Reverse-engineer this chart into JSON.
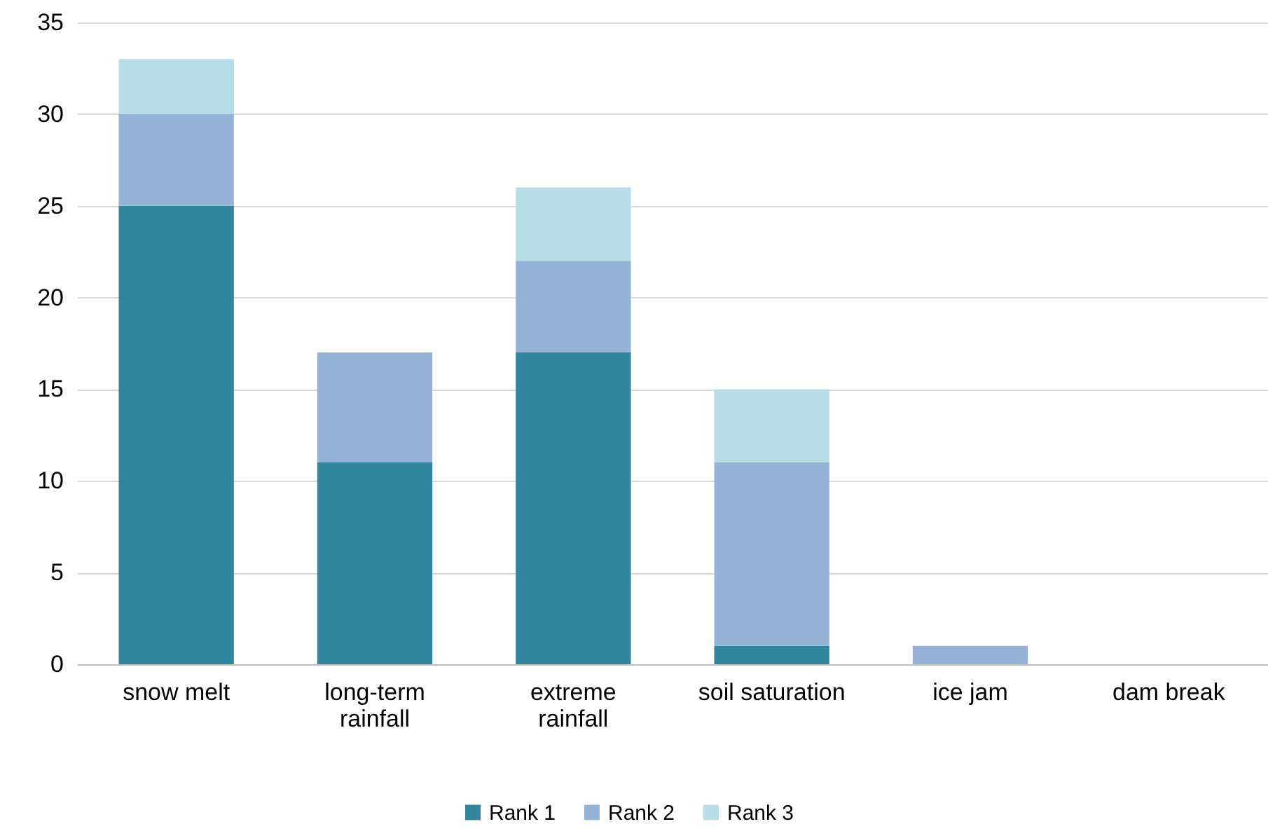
{
  "chart_data": {
    "type": "bar",
    "stacked": true,
    "categories": [
      "snow melt",
      "long-term\nrainfall",
      "extreme\nrainfall",
      "soil saturation",
      "ice jam",
      "dam break"
    ],
    "series": [
      {
        "name": "Rank 1",
        "color": "#31859c",
        "values": [
          25,
          11,
          17,
          1,
          0,
          0
        ]
      },
      {
        "name": "Rank 2",
        "color": "#95b3d7",
        "values": [
          5,
          6,
          5,
          10,
          1,
          0
        ]
      },
      {
        "name": "Rank 3",
        "color": "#b7dee8",
        "values": [
          3,
          0,
          4,
          4,
          0,
          0
        ]
      }
    ],
    "ylim": [
      0,
      35
    ],
    "yticks": [
      0,
      5,
      10,
      15,
      20,
      25,
      30,
      35
    ],
    "grid": "y",
    "legend": "bottom"
  }
}
